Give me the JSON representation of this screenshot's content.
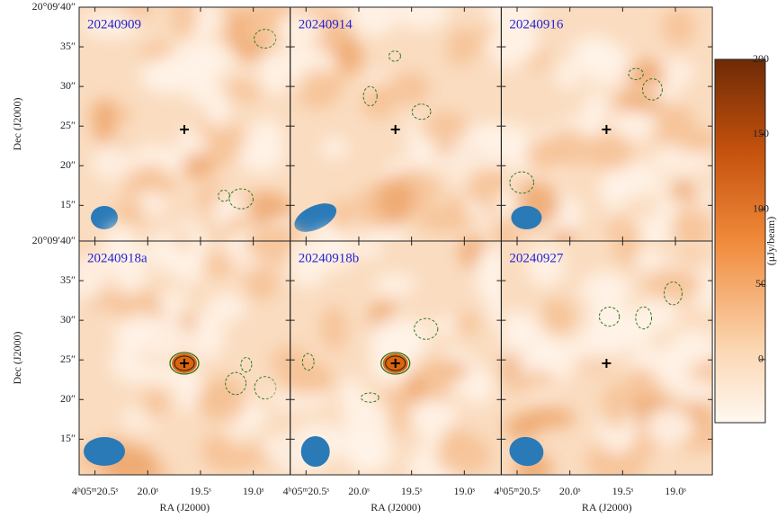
{
  "chart_data": {
    "type": "image-grid",
    "panels": [
      "20240909",
      "20240914",
      "20240916",
      "20240918a",
      "20240918b",
      "20240927"
    ],
    "xlabel": "RA (J2000)",
    "ylabel": "Dec (J2000)",
    "xlim": [
      20.65,
      18.65
    ],
    "xticks": [
      {
        "value": 20.5,
        "label": "4ʰ05ᵐ20.5ˢ"
      },
      {
        "value": 20.0,
        "label": "20.0ˢ"
      },
      {
        "value": 19.5,
        "label": "19.5ˢ"
      },
      {
        "value": 19.0,
        "label": "19.0ˢ"
      }
    ],
    "ylim": [
      10.5,
      40
    ],
    "yticks": [
      {
        "value": 40,
        "label": "20°09′40″"
      },
      {
        "value": 35,
        "label": "35″"
      },
      {
        "value": 30,
        "label": "30″"
      },
      {
        "value": 25,
        "label": "25″"
      },
      {
        "value": 20,
        "label": "20″"
      },
      {
        "value": 15,
        "label": "15″"
      }
    ],
    "colorbar_label": "(μJy/beam)",
    "clim": [
      -42,
      200
    ],
    "cticks": [
      0,
      50,
      100,
      150,
      200
    ]
  }
}
